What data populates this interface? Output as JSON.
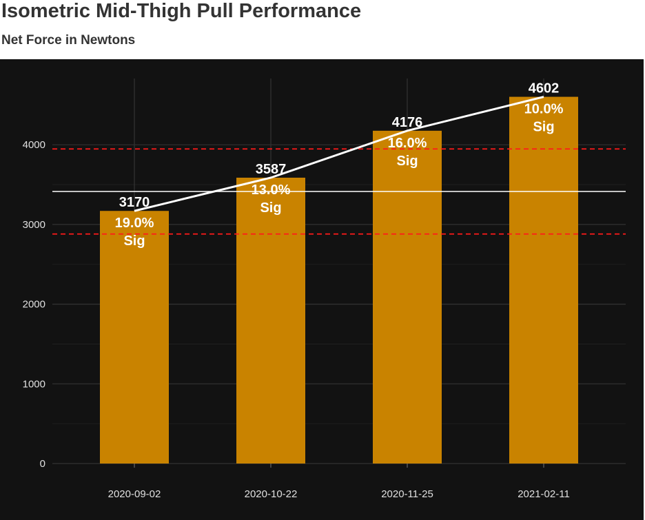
{
  "title": "Isometric Mid-Thigh Pull Performance",
  "subtitle": "Net Force in Newtons",
  "colors": {
    "bar": "#c98300",
    "panel_bg": "#121212",
    "trend_line": "#ffffff",
    "mean_line": "#ffffff",
    "band_line": "#ff1a1a",
    "grid": "#333333"
  },
  "chart_data": {
    "type": "bar",
    "title": "Isometric Mid-Thigh Pull Performance",
    "subtitle": "Net Force in Newtons",
    "xlabel": "",
    "ylabel": "",
    "categories": [
      "2020-09-02",
      "2020-10-22",
      "2020-11-25",
      "2021-02-11"
    ],
    "values": [
      3170,
      3587,
      4176,
      4602
    ],
    "value_labels": [
      "3170",
      "3587",
      "4176",
      "4602"
    ],
    "percent_labels": [
      "19.0%",
      "13.0%",
      "16.0%",
      "10.0%"
    ],
    "sig_labels": [
      "Sig",
      "Sig",
      "Sig",
      "Sig"
    ],
    "ylim": [
      0,
      4800
    ],
    "yticks": [
      0,
      1000,
      2000,
      3000,
      4000
    ],
    "ytick_labels": [
      "0",
      "1000",
      "2000",
      "3000",
      "4000"
    ],
    "mean_line": 3414,
    "band_lines": [
      2880,
      3948
    ],
    "trend_line": true,
    "grid": true,
    "legend": "none"
  }
}
